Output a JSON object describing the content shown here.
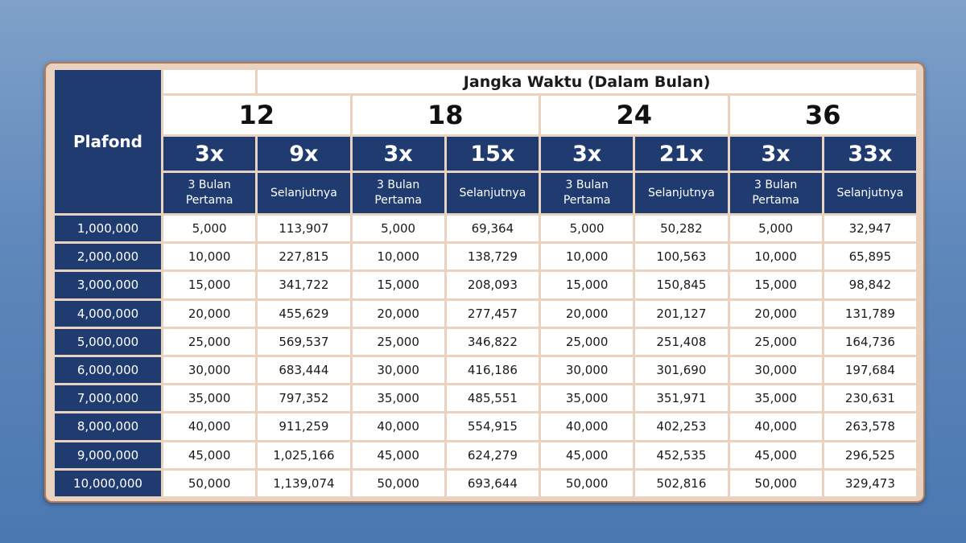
{
  "table": {
    "plafond_header": "Plafond",
    "jangka_header": "Jangka Waktu (Dalam Bulan)",
    "terms": [
      {
        "label": "12",
        "first_mult": "3x",
        "rest_mult": "9x"
      },
      {
        "label": "18",
        "first_mult": "3x",
        "rest_mult": "15x"
      },
      {
        "label": "24",
        "first_mult": "3x",
        "rest_mult": "21x"
      },
      {
        "label": "36",
        "first_mult": "3x",
        "rest_mult": "33x"
      }
    ],
    "sub_first_line1": "3 Bulan",
    "sub_first_line2": "Pertama",
    "sub_rest": "Selanjutnya",
    "rows": [
      {
        "plafond": "1,000,000",
        "values": [
          "5,000",
          "113,907",
          "5,000",
          "69,364",
          "5,000",
          "50,282",
          "5,000",
          "32,947"
        ]
      },
      {
        "plafond": "2,000,000",
        "values": [
          "10,000",
          "227,815",
          "10,000",
          "138,729",
          "10,000",
          "100,563",
          "10,000",
          "65,895"
        ]
      },
      {
        "plafond": "3,000,000",
        "values": [
          "15,000",
          "341,722",
          "15,000",
          "208,093",
          "15,000",
          "150,845",
          "15,000",
          "98,842"
        ]
      },
      {
        "plafond": "4,000,000",
        "values": [
          "20,000",
          "455,629",
          "20,000",
          "277,457",
          "20,000",
          "201,127",
          "20,000",
          "131,789"
        ]
      },
      {
        "plafond": "5,000,000",
        "values": [
          "25,000",
          "569,537",
          "25,000",
          "346,822",
          "25,000",
          "251,408",
          "25,000",
          "164,736"
        ]
      },
      {
        "plafond": "6,000,000",
        "values": [
          "30,000",
          "683,444",
          "30,000",
          "416,186",
          "30,000",
          "301,690",
          "30,000",
          "197,684"
        ]
      },
      {
        "plafond": "7,000,000",
        "values": [
          "35,000",
          "797,352",
          "35,000",
          "485,551",
          "35,000",
          "351,971",
          "35,000",
          "230,631"
        ]
      },
      {
        "plafond": "8,000,000",
        "values": [
          "40,000",
          "911,259",
          "40,000",
          "554,915",
          "40,000",
          "402,253",
          "40,000",
          "263,578"
        ]
      },
      {
        "plafond": "9,000,000",
        "values": [
          "45,000",
          "1,025,166",
          "45,000",
          "624,279",
          "45,000",
          "452,535",
          "45,000",
          "296,525"
        ]
      },
      {
        "plafond": "10,000,000",
        "values": [
          "50,000",
          "1,139,074",
          "50,000",
          "693,644",
          "50,000",
          "502,816",
          "50,000",
          "329,473"
        ]
      }
    ]
  },
  "colors": {
    "header_navy": "#1f3b70",
    "frame": "#e9d2bf",
    "frame_border": "#b87a52",
    "background": "#5f88bb"
  }
}
